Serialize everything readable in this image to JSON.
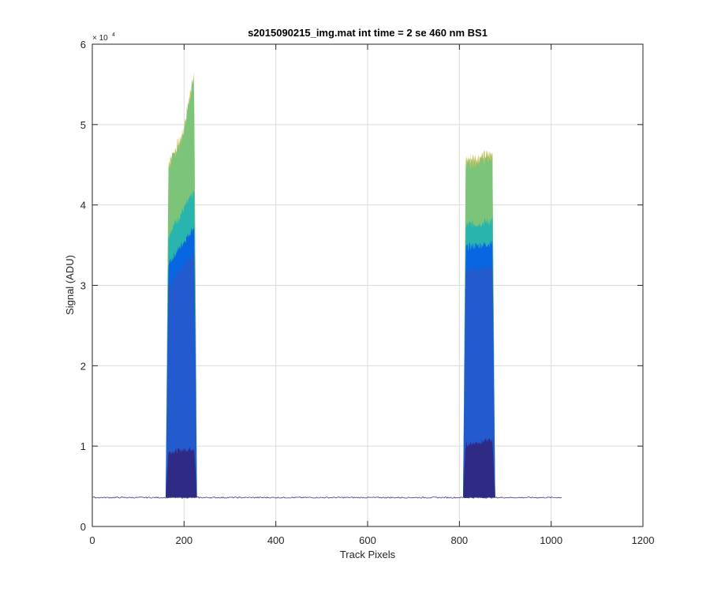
{
  "chart_data": {
    "type": "area",
    "title": "s2015090215_img.mat int time = 2 se  460 nm BS1",
    "xlabel": "Track Pixels",
    "ylabel": "Signal (ADU)",
    "xlim": [
      0,
      1200
    ],
    "ylim": [
      0,
      60000
    ],
    "xticks": [
      0,
      200,
      400,
      600,
      800,
      1000,
      1200
    ],
    "yticks": [
      0,
      1,
      2,
      3,
      4,
      5,
      6
    ],
    "y_exponent": {
      "base": "× 10",
      "power": "4"
    },
    "grid": true,
    "baseline": 3600,
    "x_extent": [
      1,
      1024
    ],
    "peaks": [
      {
        "x_start": 160,
        "x_end": 228,
        "dark_level": 9500,
        "blue_level": 35000,
        "green_level": 48000,
        "max": 54500
      },
      {
        "x_start": 808,
        "x_end": 878,
        "dark_level": 10500,
        "blue_level": 35000,
        "green_level": 45500,
        "max": 46500
      }
    ],
    "series": [
      {
        "color": "#2e2a85"
      },
      {
        "color": "#2f56c4"
      },
      {
        "color": "#0866e0"
      },
      {
        "color": "#1bb3b6"
      },
      {
        "color": "#7cc47a"
      },
      {
        "color": "#c4b94a"
      }
    ]
  }
}
